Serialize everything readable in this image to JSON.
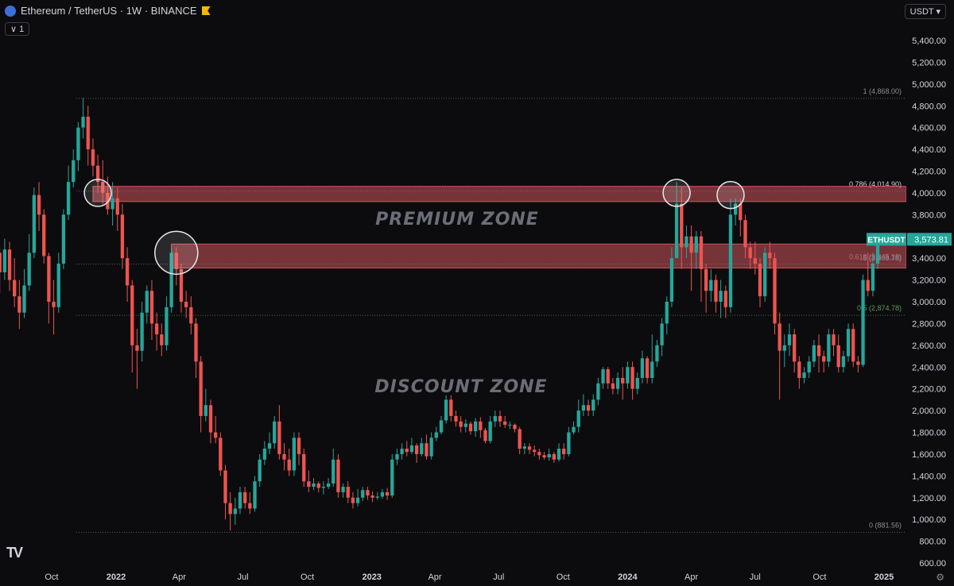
{
  "header": {
    "title": "Ethereum / TetherUS · 1W · BINANCE",
    "interval_chip": "1",
    "currency": "USDT",
    "logo_icon": "ethereum-logo-icon",
    "flag_icon": "flag-icon"
  },
  "footer": {
    "brand": "TV",
    "settings_icon": "gear-icon"
  },
  "colors": {
    "background": "#0c0c0e",
    "up": "#26a69a",
    "down": "#ef5350",
    "zone": "#e05a62",
    "axis_text": "#d1d4dc",
    "fib_text": "#8a8d96",
    "price_tag": "#26a69a"
  },
  "chart_data": {
    "type": "candlestick",
    "symbol": "ETHUSDT",
    "last_price": "3,573.81",
    "ylim": [
      600,
      5600
    ],
    "y_ticks": [
      600,
      800,
      1000,
      1200,
      1400,
      1600,
      1800,
      2000,
      2200,
      2400,
      2600,
      2800,
      3000,
      3200,
      3400,
      3600,
      3800,
      4000,
      4200,
      4400,
      4600,
      4800,
      5000,
      5200,
      5400
    ],
    "y_tick_labels": [
      "600.00",
      "800.00",
      "1,000.00",
      "1,200.00",
      "1,400.00",
      "1,600.00",
      "1,800.00",
      "2,000.00",
      "2,200.00",
      "2,400.00",
      "2,600.00",
      "2,800.00",
      "3,000.00",
      "3,200.00",
      "3,400.00",
      "3,600.00",
      "3,800.00",
      "4,000.00",
      "4,200.00",
      "4,400.00",
      "4,600.00",
      "4,800.00",
      "5,000.00",
      "5,200.00",
      "5,400.00"
    ],
    "x_labels": [
      "Oct",
      "2022",
      "Apr",
      "Jul",
      "Oct",
      "2023",
      "Apr",
      "Jul",
      "Oct",
      "2024",
      "Apr",
      "Jul",
      "Oct",
      "2025"
    ],
    "x_label_dates": [
      "2021-10-01",
      "2022-01-01",
      "2022-04-01",
      "2022-07-01",
      "2022-10-01",
      "2023-01-01",
      "2023-04-01",
      "2023-07-01",
      "2023-10-01",
      "2024-01-01",
      "2024-04-01",
      "2024-07-01",
      "2024-10-01",
      "2025-01-01"
    ],
    "fib_levels": [
      {
        "ratio": 1,
        "price": 4868.0,
        "label": "1 (4,868.00)"
      },
      {
        "ratio": 0.786,
        "price": 4014.9,
        "label": "0.786 (4,014.90)"
      },
      {
        "ratio": 0.618,
        "price": 3345.18,
        "label": "0.618 (3,345.18)"
      },
      {
        "ratio": 0.5,
        "price": 2874.78,
        "label": "0.5 (2,874.78)"
      },
      {
        "ratio": 0,
        "price": 881.56,
        "label": "0 (881.56)"
      }
    ],
    "fib_extra_label": ".5 (3,408.78)",
    "zones": [
      {
        "from": 3920,
        "to": 4060,
        "start_date": "2021-11-29",
        "end_date": "2024-11-25"
      },
      {
        "from": 3310,
        "to": 3530,
        "start_date": "2022-03-21",
        "end_date": "2024-11-25"
      }
    ],
    "zone_labels": [
      "PREMIUM ZONE",
      "DISCOUNT ZONE"
    ],
    "circles": [
      {
        "date": "2021-12-06",
        "price": 4000
      },
      {
        "date": "2022-03-28",
        "price": 3450
      },
      {
        "date": "2024-03-11",
        "price": 4000
      },
      {
        "date": "2024-05-27",
        "price": 3980
      }
    ],
    "start_date": "2021-05-10",
    "candles": [
      [
        2800,
        2730,
        2950,
        2400
      ],
      [
        2730,
        2500,
        2820,
        2320
      ],
      [
        2500,
        2360,
        2620,
        2260
      ],
      [
        2360,
        2220,
        2400,
        1950
      ],
      [
        2220,
        2320,
        2550,
        2120
      ],
      [
        2320,
        2600,
        2700,
        2220
      ],
      [
        2600,
        2750,
        2900,
        2560
      ],
      [
        2750,
        3050,
        3100,
        2680
      ],
      [
        3050,
        3200,
        3400,
        2950
      ],
      [
        3200,
        3450,
        3650,
        3100
      ],
      [
        3450,
        3270,
        3500,
        3080
      ],
      [
        3270,
        3480,
        3580,
        3200
      ],
      [
        3480,
        3200,
        3550,
        3100
      ],
      [
        3200,
        3050,
        3400,
        2950
      ],
      [
        3050,
        2900,
        3200,
        2750
      ],
      [
        2900,
        3150,
        3300,
        2850
      ],
      [
        3150,
        3450,
        3620,
        3100
      ],
      [
        3450,
        3980,
        4050,
        3400
      ],
      [
        3980,
        3800,
        4100,
        3650
      ],
      [
        3800,
        3420,
        3850,
        3350
      ],
      [
        3420,
        3000,
        3450,
        2800
      ],
      [
        3000,
        2950,
        3200,
        2700
      ],
      [
        2950,
        3350,
        3450,
        2900
      ],
      [
        3350,
        3800,
        3850,
        3300
      ],
      [
        3800,
        4100,
        4250,
        3750
      ],
      [
        4100,
        4300,
        4400,
        4050
      ],
      [
        4300,
        4600,
        4650,
        4200
      ],
      [
        4600,
        4700,
        4870,
        4500
      ],
      [
        4700,
        4400,
        4800,
        4250
      ],
      [
        4400,
        4250,
        4500,
        4150
      ],
      [
        4250,
        4100,
        4350,
        4000
      ],
      [
        4100,
        4000,
        4300,
        3900
      ],
      [
        4000,
        3850,
        4150,
        3800
      ],
      [
        3850,
        3950,
        4100,
        3700
      ],
      [
        3950,
        3800,
        4050,
        3650
      ],
      [
        3800,
        3400,
        3900,
        3300
      ],
      [
        3400,
        3150,
        3500,
        3000
      ],
      [
        3150,
        2600,
        3200,
        2350
      ],
      [
        2600,
        2550,
        2750,
        2200
      ],
      [
        2550,
        2900,
        3000,
        2450
      ],
      [
        2900,
        3100,
        3150,
        2800
      ],
      [
        3100,
        2800,
        3200,
        2650
      ],
      [
        2800,
        2700,
        2900,
        2550
      ],
      [
        2700,
        2600,
        2800,
        2500
      ],
      [
        2600,
        2950,
        3050,
        2550
      ],
      [
        2950,
        3450,
        3500,
        2900
      ],
      [
        3450,
        3300,
        3500,
        3150
      ],
      [
        3300,
        3000,
        3350,
        2900
      ],
      [
        3000,
        2950,
        3100,
        2850
      ],
      [
        2950,
        2800,
        3050,
        2700
      ],
      [
        2800,
        2450,
        2850,
        2300
      ],
      [
        2450,
        1950,
        2500,
        1800
      ],
      [
        1950,
        2050,
        2200,
        1900
      ],
      [
        2050,
        1800,
        2100,
        1700
      ],
      [
        1800,
        1750,
        1950,
        1700
      ],
      [
        1750,
        1450,
        1800,
        1400
      ],
      [
        1450,
        1150,
        1500,
        1000
      ],
      [
        1150,
        1050,
        1250,
        900
      ],
      [
        1050,
        1100,
        1200,
        950
      ],
      [
        1100,
        1250,
        1300,
        1050
      ],
      [
        1250,
        1150,
        1300,
        1100
      ],
      [
        1150,
        1100,
        1250,
        1050
      ],
      [
        1100,
        1350,
        1400,
        1070
      ],
      [
        1350,
        1550,
        1600,
        1300
      ],
      [
        1550,
        1650,
        1720,
        1500
      ],
      [
        1650,
        1700,
        1800,
        1600
      ],
      [
        1700,
        1900,
        1950,
        1650
      ],
      [
        1900,
        1600,
        2050,
        1550
      ],
      [
        1600,
        1550,
        1700,
        1450
      ],
      [
        1550,
        1450,
        1650,
        1400
      ],
      [
        1450,
        1750,
        1800,
        1400
      ],
      [
        1750,
        1600,
        1800,
        1500
      ],
      [
        1600,
        1350,
        1650,
        1300
      ],
      [
        1350,
        1300,
        1450,
        1250
      ],
      [
        1300,
        1330,
        1380,
        1270
      ],
      [
        1330,
        1290,
        1350,
        1250
      ],
      [
        1290,
        1300,
        1350,
        1230
      ],
      [
        1300,
        1330,
        1380,
        1280
      ],
      [
        1330,
        1550,
        1650,
        1300
      ],
      [
        1550,
        1250,
        1600,
        1200
      ],
      [
        1250,
        1300,
        1330,
        1200
      ],
      [
        1300,
        1200,
        1350,
        1150
      ],
      [
        1200,
        1150,
        1250,
        1100
      ],
      [
        1150,
        1200,
        1280,
        1120
      ],
      [
        1200,
        1270,
        1300,
        1170
      ],
      [
        1270,
        1220,
        1300,
        1180
      ],
      [
        1220,
        1200,
        1260,
        1160
      ],
      [
        1200,
        1210,
        1250,
        1180
      ],
      [
        1210,
        1250,
        1280,
        1190
      ],
      [
        1250,
        1220,
        1290,
        1180
      ],
      [
        1220,
        1550,
        1600,
        1200
      ],
      [
        1550,
        1600,
        1650,
        1500
      ],
      [
        1600,
        1650,
        1700,
        1550
      ],
      [
        1650,
        1620,
        1720,
        1580
      ],
      [
        1620,
        1680,
        1750,
        1600
      ],
      [
        1680,
        1600,
        1700,
        1520
      ],
      [
        1600,
        1700,
        1750,
        1580
      ],
      [
        1700,
        1580,
        1780,
        1550
      ],
      [
        1580,
        1750,
        1800,
        1550
      ],
      [
        1750,
        1800,
        1850,
        1720
      ],
      [
        1800,
        1910,
        1950,
        1780
      ],
      [
        1910,
        2100,
        2140,
        1880
      ],
      [
        2100,
        1950,
        2140,
        1900
      ],
      [
        1950,
        1900,
        2000,
        1850
      ],
      [
        1900,
        1850,
        1950,
        1800
      ],
      [
        1850,
        1880,
        1920,
        1800
      ],
      [
        1880,
        1810,
        1900,
        1780
      ],
      [
        1810,
        1900,
        1930,
        1760
      ],
      [
        1900,
        1820,
        1940,
        1750
      ],
      [
        1820,
        1720,
        1840,
        1700
      ],
      [
        1720,
        1900,
        1950,
        1700
      ],
      [
        1900,
        1950,
        2000,
        1850
      ],
      [
        1950,
        1900,
        2000,
        1850
      ],
      [
        1900,
        1870,
        1950,
        1840
      ],
      [
        1870,
        1870,
        1900,
        1830
      ],
      [
        1870,
        1830,
        1880,
        1800
      ],
      [
        1830,
        1650,
        1850,
        1600
      ],
      [
        1650,
        1670,
        1700,
        1600
      ],
      [
        1670,
        1640,
        1700,
        1600
      ],
      [
        1640,
        1620,
        1680,
        1580
      ],
      [
        1620,
        1590,
        1650,
        1550
      ],
      [
        1590,
        1570,
        1620,
        1550
      ],
      [
        1570,
        1600,
        1650,
        1540
      ],
      [
        1600,
        1550,
        1620,
        1520
      ],
      [
        1550,
        1650,
        1700,
        1530
      ],
      [
        1650,
        1600,
        1700,
        1550
      ],
      [
        1600,
        1800,
        1850,
        1580
      ],
      [
        1800,
        1850,
        1900,
        1780
      ],
      [
        1850,
        2000,
        2100,
        1800
      ],
      [
        2000,
        2050,
        2150,
        1950
      ],
      [
        2050,
        2000,
        2100,
        1950
      ],
      [
        2000,
        2100,
        2150,
        1950
      ],
      [
        2100,
        2250,
        2300,
        2050
      ],
      [
        2250,
        2380,
        2400,
        2200
      ],
      [
        2380,
        2250,
        2400,
        2200
      ],
      [
        2250,
        2200,
        2300,
        2150
      ],
      [
        2200,
        2300,
        2350,
        2150
      ],
      [
        2300,
        2250,
        2400,
        2100
      ],
      [
        2250,
        2400,
        2450,
        2200
      ],
      [
        2400,
        2200,
        2450,
        2100
      ],
      [
        2200,
        2300,
        2350,
        2150
      ],
      [
        2300,
        2480,
        2550,
        2250
      ],
      [
        2480,
        2300,
        2500,
        2250
      ],
      [
        2300,
        2450,
        2700,
        2250
      ],
      [
        2450,
        2600,
        2650,
        2400
      ],
      [
        2600,
        2800,
        2850,
        2500
      ],
      [
        2800,
        3000,
        3050,
        2700
      ],
      [
        3000,
        3400,
        3500,
        2950
      ],
      [
        3400,
        3900,
        4100,
        3400
      ],
      [
        3900,
        3500,
        4050,
        3300
      ],
      [
        3500,
        3600,
        3700,
        3400
      ],
      [
        3600,
        3450,
        3700,
        3100
      ],
      [
        3450,
        3600,
        3650,
        3300
      ],
      [
        3600,
        3300,
        3650,
        3000
      ],
      [
        3300,
        3100,
        3350,
        2900
      ],
      [
        3100,
        3200,
        3300,
        3000
      ],
      [
        3200,
        3000,
        3250,
        2900
      ],
      [
        3000,
        3100,
        3200,
        2850
      ],
      [
        3100,
        2950,
        3150,
        2850
      ],
      [
        2950,
        3800,
        3950,
        2900
      ],
      [
        3800,
        3900,
        3950,
        3700
      ],
      [
        3900,
        3750,
        3950,
        3600
      ],
      [
        3750,
        3500,
        3800,
        3400
      ],
      [
        3500,
        3400,
        3550,
        3300
      ],
      [
        3400,
        3350,
        3550,
        3250
      ],
      [
        3350,
        3050,
        3400,
        2950
      ],
      [
        3050,
        3450,
        3500,
        3000
      ],
      [
        3450,
        3400,
        3550,
        3300
      ],
      [
        3400,
        2800,
        3450,
        2700
      ],
      [
        2800,
        2550,
        2900,
        2100
      ],
      [
        2550,
        2600,
        2700,
        2400
      ],
      [
        2600,
        2700,
        2800,
        2500
      ],
      [
        2700,
        2450,
        2750,
        2350
      ],
      [
        2450,
        2300,
        2500,
        2200
      ],
      [
        2300,
        2350,
        2400,
        2250
      ],
      [
        2350,
        2450,
        2500,
        2300
      ],
      [
        2450,
        2600,
        2650,
        2400
      ],
      [
        2600,
        2500,
        2700,
        2350
      ],
      [
        2500,
        2450,
        2550,
        2350
      ],
      [
        2450,
        2700,
        2750,
        2400
      ],
      [
        2700,
        2600,
        2750,
        2500
      ],
      [
        2600,
        2400,
        2700,
        2350
      ],
      [
        2400,
        2500,
        2550,
        2350
      ],
      [
        2500,
        2750,
        2800,
        2450
      ],
      [
        2750,
        2450,
        2800,
        2400
      ],
      [
        2450,
        2420,
        2500,
        2350
      ],
      [
        2420,
        3200,
        3250,
        2400
      ],
      [
        3200,
        3100,
        3450,
        3050
      ],
      [
        3100,
        3350,
        3450,
        3050
      ],
      [
        3350,
        3573.81,
        3600,
        3300
      ]
    ]
  }
}
